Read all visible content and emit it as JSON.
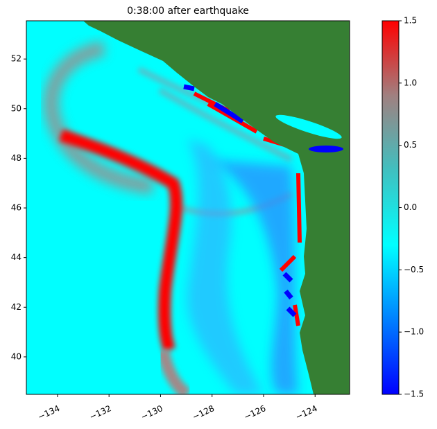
{
  "chart_data": {
    "type": "heatmap",
    "title": "0:38:00 after earthquake",
    "xlim": [
      -135.21,
      -122.66
    ],
    "ylim": [
      38.49,
      53.54
    ],
    "xticks": [
      {
        "value": -134,
        "label": "−134"
      },
      {
        "value": -132,
        "label": "−132"
      },
      {
        "value": -130,
        "label": "−130"
      },
      {
        "value": -128,
        "label": "−128"
      },
      {
        "value": -126,
        "label": "−126"
      },
      {
        "value": -124,
        "label": "−124"
      }
    ],
    "yticks": [
      40,
      42,
      44,
      46,
      48,
      50,
      52
    ],
    "colorbar": {
      "lim": [
        -1.5,
        1.5
      ],
      "ticks": [
        {
          "value": -1.5,
          "label": "−1.5"
        },
        {
          "value": -1.0,
          "label": "−1.0"
        },
        {
          "value": -0.5,
          "label": "−0.5"
        },
        {
          "value": 0.0,
          "label": "0.0"
        },
        {
          "value": 0.5,
          "label": "0.5"
        },
        {
          "value": 1.0,
          "label": "1.0"
        },
        1.5
      ],
      "colormap": [
        "#0000ff",
        "#0080ff",
        "#00ffff",
        "#40c0c0",
        "#a08080",
        "#ff0000"
      ]
    },
    "land_color": "#367f33"
  }
}
